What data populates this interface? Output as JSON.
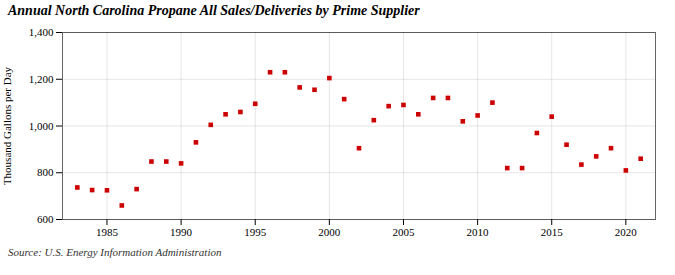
{
  "chart_data": {
    "type": "scatter",
    "title": "Annual North Carolina Propane All Sales/Deliveries by Prime Supplier",
    "ylabel": "Thousand Gallons per Day",
    "source": "Source: U.S. Energy Information Administration",
    "x": [
      1983,
      1984,
      1985,
      1986,
      1987,
      1988,
      1989,
      1990,
      1991,
      1992,
      1993,
      1994,
      1995,
      1996,
      1997,
      1998,
      1999,
      2000,
      2001,
      2002,
      2003,
      2004,
      2005,
      2006,
      2007,
      2008,
      2009,
      2010,
      2011,
      2012,
      2013,
      2014,
      2015,
      2016,
      2017,
      2018,
      2019,
      2020,
      2021
    ],
    "values": [
      737,
      726,
      725,
      660,
      730,
      848,
      848,
      840,
      930,
      1005,
      1050,
      1060,
      1095,
      1230,
      1230,
      1165,
      1155,
      1205,
      1115,
      905,
      1025,
      1085,
      1090,
      1050,
      1120,
      1120,
      1020,
      1045,
      1100,
      820,
      820,
      970,
      1040,
      920,
      835,
      870,
      905,
      810,
      860
    ],
    "color": "#cc0000",
    "marker": "square",
    "xlim": [
      1982,
      2022
    ],
    "ylim": [
      600,
      1400
    ],
    "xticks": [
      1985,
      1990,
      1995,
      2000,
      2005,
      2010,
      2015,
      2020
    ],
    "yticks": [
      600,
      800,
      {
        "value": 1000,
        "label": "1,000"
      },
      {
        "value": 1200,
        "label": "1,200"
      },
      {
        "value": 1400,
        "label": "1,400"
      }
    ],
    "grid": true
  }
}
